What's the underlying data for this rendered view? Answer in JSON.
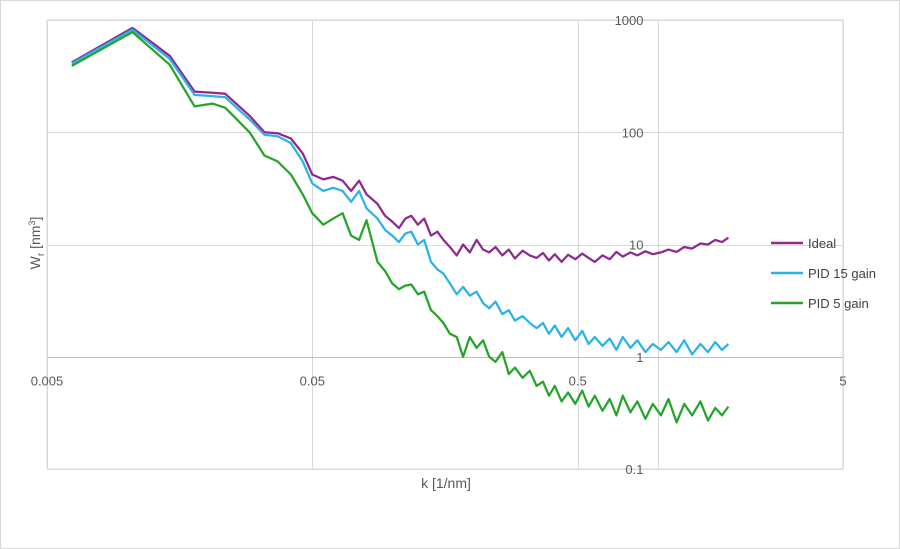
{
  "chart_data": {
    "type": "line",
    "title": "",
    "xlabel": "k [1/nm]",
    "ylabel_main": "W",
    "ylabel_sub": "r",
    "ylabel_rest": " [nm",
    "ylabel_sup": "3",
    "ylabel_end": "]",
    "x_scale": "log",
    "y_scale": "log",
    "xlim": [
      0.005,
      5
    ],
    "ylim": [
      0.1,
      1000
    ],
    "x_ticks": [
      0.005,
      0.05,
      0.5,
      5
    ],
    "x_tick_labels": [
      "0.005",
      "0.05",
      "0.5",
      "5"
    ],
    "y_ticks": [
      0.1,
      1,
      10,
      100,
      1000
    ],
    "y_tick_labels": [
      "0.1",
      "1",
      "10",
      "100",
      "1000"
    ],
    "y_axis_position": "x=1 (right side)",
    "x_axis_crosses_at_y": 1,
    "grid": true,
    "legend_position": "right",
    "series": [
      {
        "name": "Ideal",
        "color": "#8e2a8e",
        "x": [
          0.0062,
          0.0105,
          0.0145,
          0.018,
          0.021,
          0.0235,
          0.029,
          0.033,
          0.037,
          0.0415,
          0.046,
          0.05,
          0.055,
          0.06,
          0.065,
          0.07,
          0.075,
          0.08,
          0.088,
          0.094,
          0.1,
          0.106,
          0.112,
          0.118,
          0.125,
          0.132,
          0.14,
          0.148,
          0.156,
          0.165,
          0.175,
          0.185,
          0.196,
          0.208,
          0.22,
          0.232,
          0.245,
          0.26,
          0.275,
          0.29,
          0.31,
          0.33,
          0.35,
          0.37,
          0.39,
          0.41,
          0.435,
          0.46,
          0.49,
          0.52,
          0.55,
          0.58,
          0.62,
          0.66,
          0.7,
          0.74,
          0.79,
          0.84,
          0.9,
          0.96,
          1.03,
          1.1,
          1.18,
          1.26,
          1.35,
          1.45,
          1.55,
          1.65,
          1.75,
          1.85
        ],
        "y": [
          420,
          850,
          480,
          230,
          225,
          220,
          140,
          100,
          98,
          88,
          65,
          42,
          38,
          40,
          37,
          30,
          37,
          28,
          23,
          18,
          16,
          14,
          17,
          18,
          15,
          17,
          12,
          13,
          11,
          9.5,
          8,
          10,
          8.5,
          11,
          9,
          8.5,
          9.5,
          8,
          9,
          7.5,
          8.8,
          8,
          7.6,
          8.4,
          7.2,
          8.2,
          7,
          8.1,
          7.4,
          8.3,
          7.6,
          7.0,
          8.0,
          7.4,
          8.6,
          7.8,
          8.5,
          8.0,
          8.7,
          8.2,
          8.5,
          9,
          8.6,
          9.5,
          9.2,
          10.2,
          10.0,
          11,
          10.5,
          11.5
        ]
      },
      {
        "name": "PID 15 gain",
        "color": "#2bb3e8",
        "x": [
          0.0062,
          0.0105,
          0.0145,
          0.018,
          0.021,
          0.0235,
          0.029,
          0.033,
          0.037,
          0.0415,
          0.046,
          0.05,
          0.055,
          0.06,
          0.065,
          0.07,
          0.075,
          0.08,
          0.088,
          0.094,
          0.1,
          0.106,
          0.112,
          0.118,
          0.125,
          0.132,
          0.14,
          0.148,
          0.156,
          0.165,
          0.175,
          0.185,
          0.196,
          0.208,
          0.22,
          0.232,
          0.245,
          0.26,
          0.275,
          0.29,
          0.31,
          0.33,
          0.35,
          0.37,
          0.39,
          0.41,
          0.435,
          0.46,
          0.49,
          0.52,
          0.55,
          0.58,
          0.62,
          0.66,
          0.7,
          0.74,
          0.79,
          0.84,
          0.9,
          0.96,
          1.03,
          1.1,
          1.18,
          1.26,
          1.35,
          1.45,
          1.55,
          1.65,
          1.75,
          1.85
        ],
        "y": [
          410,
          820,
          450,
          215,
          210,
          205,
          130,
          95,
          92,
          80,
          55,
          35,
          30,
          32,
          30,
          24,
          30,
          21,
          17,
          13.5,
          12,
          10.5,
          12.5,
          13,
          10,
          11,
          7,
          6,
          5.5,
          4.5,
          3.6,
          4.2,
          3.5,
          3.8,
          3.0,
          2.7,
          3.1,
          2.4,
          2.6,
          2.1,
          2.3,
          2.0,
          1.8,
          2.0,
          1.6,
          1.9,
          1.5,
          1.8,
          1.4,
          1.7,
          1.3,
          1.5,
          1.25,
          1.45,
          1.15,
          1.5,
          1.2,
          1.4,
          1.1,
          1.3,
          1.15,
          1.35,
          1.1,
          1.4,
          1.05,
          1.3,
          1.1,
          1.35,
          1.15,
          1.3
        ]
      },
      {
        "name": "PID 5 gain",
        "color": "#26a42a",
        "x": [
          0.0062,
          0.0105,
          0.0145,
          0.018,
          0.021,
          0.0235,
          0.029,
          0.033,
          0.037,
          0.0415,
          0.046,
          0.05,
          0.055,
          0.06,
          0.065,
          0.07,
          0.075,
          0.08,
          0.088,
          0.094,
          0.1,
          0.106,
          0.112,
          0.118,
          0.125,
          0.132,
          0.14,
          0.148,
          0.156,
          0.165,
          0.175,
          0.185,
          0.196,
          0.208,
          0.22,
          0.232,
          0.245,
          0.26,
          0.275,
          0.29,
          0.31,
          0.33,
          0.35,
          0.37,
          0.39,
          0.41,
          0.435,
          0.46,
          0.49,
          0.52,
          0.55,
          0.58,
          0.62,
          0.66,
          0.7,
          0.74,
          0.79,
          0.84,
          0.9,
          0.96,
          1.03,
          1.1,
          1.18,
          1.26,
          1.35,
          1.45,
          1.55,
          1.65,
          1.75,
          1.85
        ],
        "y": [
          390,
          780,
          400,
          170,
          180,
          165,
          100,
          62,
          55,
          42,
          28,
          19,
          15,
          17,
          19,
          12,
          11,
          16.5,
          7,
          5.8,
          4.5,
          4,
          4.3,
          4.4,
          3.6,
          3.8,
          2.6,
          2.3,
          2.0,
          1.6,
          1.5,
          1.0,
          1.5,
          1.2,
          1.4,
          1.0,
          0.9,
          1.1,
          0.7,
          0.8,
          0.65,
          0.75,
          0.55,
          0.6,
          0.45,
          0.55,
          0.4,
          0.48,
          0.38,
          0.5,
          0.36,
          0.45,
          0.33,
          0.42,
          0.3,
          0.45,
          0.32,
          0.4,
          0.28,
          0.38,
          0.3,
          0.42,
          0.26,
          0.38,
          0.3,
          0.4,
          0.27,
          0.35,
          0.3,
          0.36
        ]
      }
    ]
  }
}
